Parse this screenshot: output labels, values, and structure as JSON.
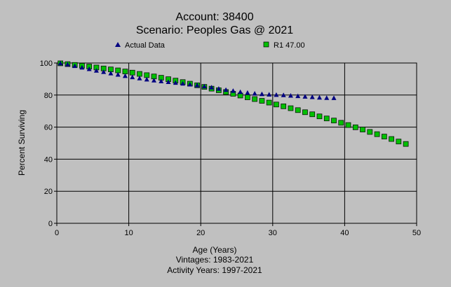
{
  "chart_data": {
    "type": "scatter",
    "title": "Account: 38400",
    "subtitle": "Scenario: Peoples Gas @ 2021",
    "xlabel": "Age (Years)",
    "ylabel": "Percent Surviving",
    "footer_lines": [
      "Vintages: 1983-2021",
      "Activity Years: 1997-2021"
    ],
    "xlim": [
      0,
      50
    ],
    "ylim": [
      0,
      100
    ],
    "x_ticks": [
      "0",
      "10",
      "20",
      "30",
      "40",
      "50"
    ],
    "y_ticks": [
      "0",
      "20",
      "40",
      "60",
      "80",
      "100"
    ],
    "grid": true,
    "legend_position": "top",
    "series": [
      {
        "name": "Actual Data",
        "marker": "triangle",
        "color": "#000080",
        "x": [
          0.5,
          1.5,
          2.5,
          3.5,
          4.5,
          5.5,
          6.5,
          7.5,
          8.5,
          9.5,
          10.5,
          11.5,
          12.5,
          13.5,
          14.5,
          15.5,
          16.5,
          17.5,
          18.5,
          19.5,
          20.5,
          21.5,
          22.5,
          23.5,
          24.5,
          25.5,
          26.5,
          27.5,
          28.5,
          29.5,
          30.5,
          31.5,
          32.5,
          33.5,
          34.5,
          35.5,
          36.5,
          37.5,
          38.5
        ],
        "y": [
          99.9,
          99.2,
          98.2,
          97.2,
          96.3,
          95.3,
          94.5,
          93.6,
          92.8,
          92.0,
          91.2,
          90.5,
          89.8,
          89.2,
          88.7,
          88.2,
          87.7,
          87.2,
          86.7,
          86.2,
          85.5,
          84.8,
          84.0,
          83.3,
          82.7,
          82.0,
          81.5,
          81.0,
          80.7,
          80.4,
          80.2,
          80.0,
          79.7,
          79.4,
          79.1,
          78.8,
          78.5,
          78.3,
          78.2
        ]
      },
      {
        "name": "R1 47.00",
        "marker": "square",
        "color": "#00c000",
        "x": [
          0.5,
          1.5,
          2.5,
          3.5,
          4.5,
          5.5,
          6.5,
          7.5,
          8.5,
          9.5,
          10.5,
          11.5,
          12.5,
          13.5,
          14.5,
          15.5,
          16.5,
          17.5,
          18.5,
          19.5,
          20.5,
          21.5,
          22.5,
          23.5,
          24.5,
          25.5,
          26.5,
          27.5,
          28.5,
          29.5,
          30.5,
          31.5,
          32.5,
          33.5,
          34.5,
          35.5,
          36.5,
          37.5,
          38.5,
          39.5,
          40.5,
          41.5,
          42.5,
          43.5,
          44.5,
          45.5,
          46.5,
          47.5,
          48.5
        ],
        "y": [
          99.8,
          99.3,
          98.8,
          98.3,
          97.8,
          97.2,
          96.6,
          96.0,
          95.4,
          94.7,
          94.0,
          93.2,
          92.4,
          91.6,
          90.8,
          89.9,
          89.0,
          88.1,
          87.1,
          86.1,
          85.1,
          84.0,
          83.0,
          81.9,
          80.8,
          79.7,
          78.6,
          77.5,
          76.4,
          75.3,
          74.1,
          73.0,
          71.8,
          70.6,
          69.3,
          68.0,
          66.7,
          65.4,
          64.1,
          62.7,
          61.3,
          59.9,
          58.5,
          57.0,
          55.6,
          54.1,
          52.6,
          51.0,
          49.5
        ]
      }
    ]
  }
}
